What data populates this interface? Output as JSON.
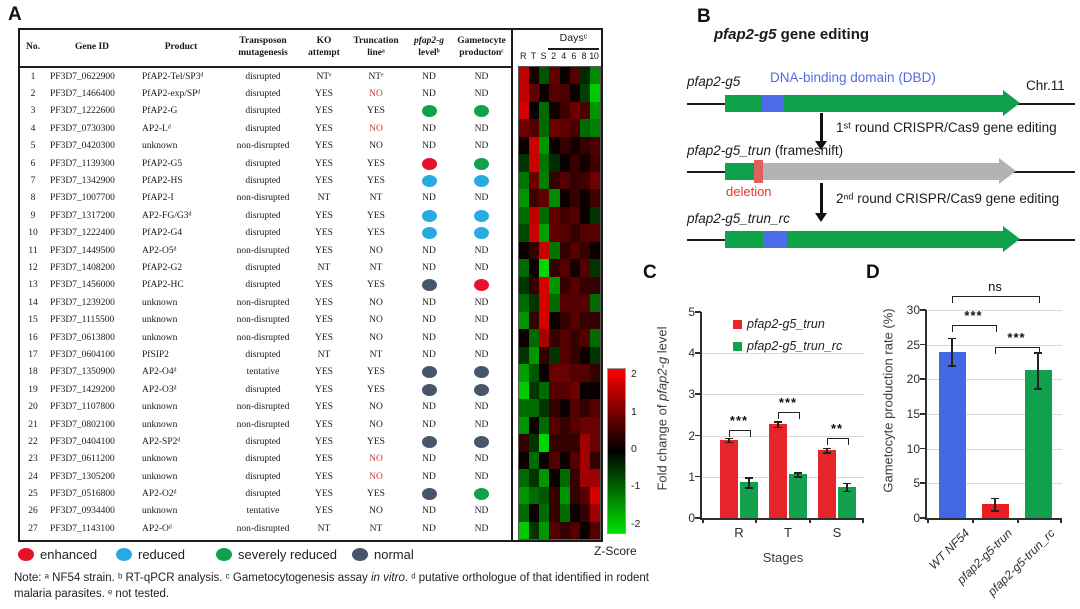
{
  "panel_a": {
    "label": "A",
    "headers": {
      "no": "No.",
      "gene_id": "Gene ID",
      "product": "Product",
      "transposon": "Transposon mutagenesis",
      "ko": "KO attempt",
      "trunc": "Truncation lineᵃ",
      "level_it": "pfap2-g",
      "level_rest": " levelᵇ",
      "production": "Gametocyte productonᶜ",
      "days": "Daysᶜ"
    },
    "marker_colors": {
      "enhanced": "#e8112a",
      "reduced": "#29abe2",
      "severely_reduced": "#10a14b",
      "normal": "#47566a"
    },
    "no_red_color": "#c43b3b",
    "rows": [
      {
        "no": "1",
        "gene_id": "PF3D7_0622900",
        "product": "PfAP2-Tel/SP3ᵈ",
        "transposon": "disrupted",
        "ko": "NTᵉ",
        "trunc": "NTᵉ",
        "trunc_red": false,
        "level": "ND",
        "production": "ND"
      },
      {
        "no": "2",
        "gene_id": "PF3D7_1466400",
        "product": "PfAP2-exp/SPᵈ",
        "transposon": "disrupted",
        "ko": "YES",
        "trunc": "NO",
        "trunc_red": true,
        "level": "ND",
        "production": "ND"
      },
      {
        "no": "3",
        "gene_id": "PF3D7_1222600",
        "product": "PfAP2-G",
        "transposon": "disrupted",
        "ko": "YES",
        "trunc": "YES",
        "trunc_red": false,
        "level": "severely_reduced",
        "production": "severely_reduced"
      },
      {
        "no": "4",
        "gene_id": "PF3D7_0730300",
        "product": "AP2-Lᵈ",
        "transposon": "disrupted",
        "ko": "YES",
        "trunc": "NO",
        "trunc_red": true,
        "level": "ND",
        "production": "ND"
      },
      {
        "no": "5",
        "gene_id": "PF3D7_0420300",
        "product": "unknown",
        "transposon": "non-disrupted",
        "ko": "YES",
        "trunc": "NO",
        "trunc_red": false,
        "level": "ND",
        "production": "ND"
      },
      {
        "no": "6",
        "gene_id": "PF3D7_1139300",
        "product": "PfAP2-G5",
        "transposon": "disrupted",
        "ko": "YES",
        "trunc": "YES",
        "trunc_red": false,
        "level": "enhanced",
        "production": "severely_reduced"
      },
      {
        "no": "7",
        "gene_id": "PF3D7_1342900",
        "product": "PfAP2-HS",
        "transposon": "disrupted",
        "ko": "YES",
        "trunc": "YES",
        "trunc_red": false,
        "level": "reduced",
        "production": "reduced"
      },
      {
        "no": "8",
        "gene_id": "PF3D7_1007700",
        "product": "PfAP2-I",
        "transposon": "non-disrupted",
        "ko": "NT",
        "trunc": "NT",
        "trunc_red": false,
        "level": "ND",
        "production": "ND"
      },
      {
        "no": "9",
        "gene_id": "PF3D7_1317200",
        "product": "AP2-FG/G3ᵈ",
        "transposon": "disrupted",
        "ko": "YES",
        "trunc": "YES",
        "trunc_red": false,
        "level": "reduced",
        "production": "reduced"
      },
      {
        "no": "10",
        "gene_id": "PF3D7_1222400",
        "product": "PfAP2-G4",
        "transposon": "disrupted",
        "ko": "YES",
        "trunc": "YES",
        "trunc_red": false,
        "level": "reduced",
        "production": "reduced"
      },
      {
        "no": "11",
        "gene_id": "PF3D7_1449500",
        "product": "AP2-O5ᵈ",
        "transposon": "non-disrupted",
        "ko": "YES",
        "trunc": "NO",
        "trunc_red": false,
        "level": "ND",
        "production": "ND"
      },
      {
        "no": "12",
        "gene_id": "PF3D7_1408200",
        "product": "PfAP2-G2",
        "transposon": "disrupted",
        "ko": "NT",
        "trunc": "NT",
        "trunc_red": false,
        "level": "ND",
        "production": "ND"
      },
      {
        "no": "13",
        "gene_id": "PF3D7_1456000",
        "product": "PfAP2-HC",
        "transposon": "disrupted",
        "ko": "YES",
        "trunc": "YES",
        "trunc_red": false,
        "level": "normal",
        "production": "enhanced"
      },
      {
        "no": "14",
        "gene_id": "PF3D7_1239200",
        "product": "unknown",
        "transposon": "non-disrupted",
        "ko": "YES",
        "trunc": "NO",
        "trunc_red": false,
        "level": "ND",
        "production": "ND"
      },
      {
        "no": "15",
        "gene_id": "PF3D7_1115500",
        "product": "unknown",
        "transposon": "non-disrupted",
        "ko": "YES",
        "trunc": "NO",
        "trunc_red": false,
        "level": "ND",
        "production": "ND"
      },
      {
        "no": "16",
        "gene_id": "PF3D7_0613800",
        "product": "unknown",
        "transposon": "non-disrupted",
        "ko": "YES",
        "trunc": "NO",
        "trunc_red": false,
        "level": "ND",
        "production": "ND"
      },
      {
        "no": "17",
        "gene_id": "PF3D7_0604100",
        "product": "PfSIP2",
        "transposon": "disrupted",
        "ko": "NT",
        "trunc": "NT",
        "trunc_red": false,
        "level": "ND",
        "production": "ND"
      },
      {
        "no": "18",
        "gene_id": "PF3D7_1350900",
        "product": "AP2-O4ᵈ",
        "transposon": "tentative",
        "ko": "YES",
        "trunc": "YES",
        "trunc_red": false,
        "level": "normal",
        "production": "normal"
      },
      {
        "no": "19",
        "gene_id": "PF3D7_1429200",
        "product": "AP2-O3ᵈ",
        "transposon": "disrupted",
        "ko": "YES",
        "trunc": "YES",
        "trunc_red": false,
        "level": "normal",
        "production": "normal"
      },
      {
        "no": "20",
        "gene_id": "PF3D7_1107800",
        "product": "unknown",
        "transposon": "non-disrupted",
        "ko": "YES",
        "trunc": "NO",
        "trunc_red": false,
        "level": "ND",
        "production": "ND"
      },
      {
        "no": "21",
        "gene_id": "PF3D7_0802100",
        "product": "unknown",
        "transposon": "non-disrupted",
        "ko": "YES",
        "trunc": "NO",
        "trunc_red": false,
        "level": "ND",
        "production": "ND"
      },
      {
        "no": "22",
        "gene_id": "PF3D7_0404100",
        "product": "AP2-SP2ᵈ",
        "transposon": "disrupted",
        "ko": "YES",
        "trunc": "YES",
        "trunc_red": false,
        "level": "normal",
        "production": "normal"
      },
      {
        "no": "23",
        "gene_id": "PF3D7_0611200",
        "product": "unknown",
        "transposon": "disrupted",
        "ko": "YES",
        "trunc": "NO",
        "trunc_red": true,
        "level": "ND",
        "production": "ND"
      },
      {
        "no": "24",
        "gene_id": "PF3D7_1305200",
        "product": "unknown",
        "transposon": "disrupted",
        "ko": "YES",
        "trunc": "NO",
        "trunc_red": true,
        "level": "ND",
        "production": "ND"
      },
      {
        "no": "25",
        "gene_id": "PF3D7_0516800",
        "product": "AP2-O2ᵈ",
        "transposon": "disrupted",
        "ko": "YES",
        "trunc": "YES",
        "trunc_red": false,
        "level": "normal",
        "production": "severely_reduced"
      },
      {
        "no": "26",
        "gene_id": "PF3D7_0934400",
        "product": "unknown",
        "transposon": "tentative",
        "ko": "YES",
        "trunc": "NO",
        "trunc_red": false,
        "level": "ND",
        "production": "ND"
      },
      {
        "no": "27",
        "gene_id": "PF3D7_1143100",
        "product": "AP2-Oᵈ",
        "transposon": "non-disrupted",
        "ko": "NT",
        "trunc": "NT",
        "trunc_red": false,
        "level": "ND",
        "production": "ND"
      }
    ],
    "colorbar": {
      "ticks": [
        2,
        1,
        0,
        -1,
        -2
      ],
      "min": -2.2,
      "max": 2.2,
      "label": "Z-Score"
    },
    "legend": [
      {
        "label": "enhanced",
        "color": "#e8112a",
        "x": 18
      },
      {
        "label": "reduced",
        "color": "#29abe2",
        "x": 116
      },
      {
        "label": "severely reduced",
        "color": "#10a14b",
        "x": 216
      },
      {
        "label": "normal",
        "color": "#47566a",
        "x": 352
      }
    ],
    "note_segments": [
      {
        "t": "Note: ᵃ NF54 strain. ᵇ RT-qPCR analysis. ᶜ Gametocytogenesis assay ",
        "i": false
      },
      {
        "t": "in vitro",
        "i": true
      },
      {
        "t": ". ᵈ putative orthologue of that identified in rodent malaria parasites. ᵉ not tested.",
        "i": false
      }
    ]
  },
  "panel_b": {
    "label": "B",
    "title_gene": "pfap2-g5",
    "title_rest": " gene editing",
    "row1_label": "pfap2-g5",
    "dbd_label": "DNA-binding domain (DBD)",
    "chr_label": "Chr.11",
    "step1": "1ˢᵗ round CRISPR/Cas9 gene editing",
    "row2_gene": "pfap2-g5_trun",
    "row2_rest": " (frameshift)",
    "deletion_label": "deletion",
    "step2": "2ⁿᵈ round CRISPR/Cas9 gene editing",
    "row3_label": "pfap2-g5_trun_rc",
    "colors": {
      "gene_body": "#10a14b",
      "dbd_box": "#4f6ce8",
      "disrupted_body": "#b3b3b3",
      "deletion_box": "#e06060",
      "deletion_text": "#e8332e"
    }
  },
  "panel_c": {
    "label": "C"
  },
  "panel_d": {
    "label": "D"
  },
  "chart_data": [
    {
      "type": "heatmap",
      "title": "Transcription z-score heatmap (panel A rows 1-27)",
      "columns": [
        "R",
        "T",
        "S",
        "2",
        "4",
        "6",
        "8",
        "10"
      ],
      "days_group": [
        "2",
        "4",
        "6",
        "8",
        "10"
      ],
      "zlim": [
        -2.2,
        2.2
      ],
      "colorbar_label": "Z-Score",
      "values": [
        [
          1.8,
          0.2,
          -0.8,
          0.9,
          0.1,
          0.8,
          -0.4,
          -1.3
        ],
        [
          1.8,
          0.9,
          0.1,
          0.8,
          0.7,
          0.1,
          -0.6,
          -1.9
        ],
        [
          2.0,
          0.0,
          -1.0,
          0.2,
          0.6,
          1.0,
          0.7,
          -1.4
        ],
        [
          1.0,
          0.8,
          -1.0,
          1.0,
          0.9,
          0.7,
          -1.0,
          -1.2
        ],
        [
          0.1,
          1.9,
          -1.4,
          0.1,
          0.5,
          0.2,
          0.5,
          0.7
        ],
        [
          -0.5,
          1.9,
          -1.1,
          -0.4,
          0.1,
          0.5,
          0.2,
          0.6
        ],
        [
          -1.1,
          1.0,
          -1.2,
          0.5,
          0.8,
          0.5,
          0.6,
          1.0
        ],
        [
          -1.4,
          0.6,
          0.9,
          -1.3,
          0.1,
          0.5,
          0.1,
          0.6
        ],
        [
          -1.0,
          1.8,
          -1.0,
          0.9,
          0.6,
          0.8,
          0.1,
          -0.5
        ],
        [
          -0.7,
          1.9,
          -1.5,
          0.9,
          0.8,
          0.5,
          0.8,
          0.8
        ],
        [
          0.1,
          0.5,
          1.9,
          -1.1,
          0.5,
          0.8,
          0.5,
          0.1
        ],
        [
          -1.0,
          0.1,
          -2.0,
          0.5,
          0.8,
          0.2,
          0.8,
          -0.5
        ],
        [
          -0.5,
          0.5,
          2.0,
          -1.4,
          0.5,
          0.8,
          0.5,
          0.5
        ],
        [
          -1.0,
          -0.5,
          2.0,
          -1.0,
          0.8,
          0.8,
          0.8,
          -1.0
        ],
        [
          -1.4,
          0.5,
          2.0,
          0.1,
          0.5,
          0.8,
          0.5,
          0.5
        ],
        [
          0.1,
          -1.0,
          1.6,
          0.5,
          0.8,
          0.5,
          0.8,
          -1.0
        ],
        [
          -0.5,
          -1.4,
          0.5,
          -0.5,
          0.8,
          0.5,
          0.1,
          -0.5
        ],
        [
          -1.5,
          -0.8,
          0.1,
          1.0,
          1.0,
          0.8,
          0.8,
          0.5
        ],
        [
          -1.9,
          -0.5,
          -1.0,
          0.8,
          0.8,
          1.0,
          0.1,
          0.1
        ],
        [
          -1.0,
          -1.0,
          -0.5,
          0.5,
          0.1,
          0.8,
          0.5,
          0.8
        ],
        [
          -1.4,
          0.1,
          -1.0,
          0.8,
          0.5,
          0.8,
          1.0,
          1.0
        ],
        [
          0.5,
          -0.5,
          -2.0,
          0.5,
          0.5,
          0.5,
          1.5,
          1.0
        ],
        [
          0.1,
          -1.0,
          0.1,
          0.8,
          0.1,
          0.8,
          1.5,
          0.5
        ],
        [
          -1.0,
          -0.5,
          -1.4,
          0.1,
          -1.0,
          0.5,
          1.5,
          1.5
        ],
        [
          -1.4,
          -1.0,
          -0.8,
          0.5,
          -1.4,
          0.5,
          0.8,
          2.0
        ],
        [
          -1.0,
          0.1,
          -1.0,
          0.5,
          -1.0,
          0.1,
          0.5,
          1.5
        ],
        [
          -1.9,
          -0.5,
          -1.4,
          0.8,
          0.5,
          0.8,
          0.1,
          0.8
        ]
      ]
    },
    {
      "type": "bar",
      "categories": [
        "R",
        "T",
        "S"
      ],
      "series": [
        {
          "name": "pfap2-g5_trun",
          "color": "#e8242b",
          "values": [
            1.9,
            2.28,
            1.65
          ],
          "errors": [
            0.05,
            0.07,
            0.06
          ]
        },
        {
          "name": "pfap2-g5_trun_rc",
          "color": "#12a14d",
          "values": [
            0.87,
            1.06,
            0.76
          ],
          "errors": [
            0.12,
            0.05,
            0.1
          ]
        }
      ],
      "xlabel": "Stages",
      "ylabel": "Fold change of pfap2-g level",
      "ylabel_pre": "Fold change of ",
      "ylabel_it": "pfap2-g",
      "ylabel_post": " level",
      "ylim": [
        0,
        5
      ],
      "yticks": [
        0,
        1,
        2,
        3,
        4,
        5
      ],
      "grid": [
        1,
        2,
        3,
        4
      ],
      "legend_position": "top-left",
      "significance": [
        {
          "category": "R",
          "label": "***"
        },
        {
          "category": "T",
          "label": "***"
        },
        {
          "category": "S",
          "label": "**"
        }
      ]
    },
    {
      "type": "bar",
      "categories": [
        "WT NF54",
        "pfap2-g5-trun",
        "pfap2-g5-trun_rc"
      ],
      "values": [
        24,
        2,
        21.3
      ],
      "errors": [
        2,
        0.9,
        2.6
      ],
      "colors": [
        "#4169e1",
        "#ed1c24",
        "#10a04e"
      ],
      "ylabel": "Gametocyte production rate (%)",
      "ylim": [
        0,
        30
      ],
      "yticks": [
        0,
        5,
        10,
        15,
        20,
        25,
        30
      ],
      "grid": [
        5,
        10,
        15,
        20,
        25,
        30
      ],
      "significance": [
        {
          "between": [
            "WT NF54",
            "pfap2-g5-trun_rc"
          ],
          "label": "ns"
        },
        {
          "between": [
            "WT NF54",
            "pfap2-g5-trun"
          ],
          "label": "***"
        },
        {
          "between": [
            "pfap2-g5-trun",
            "pfap2-g5-trun_rc"
          ],
          "label": "***"
        }
      ]
    }
  ]
}
